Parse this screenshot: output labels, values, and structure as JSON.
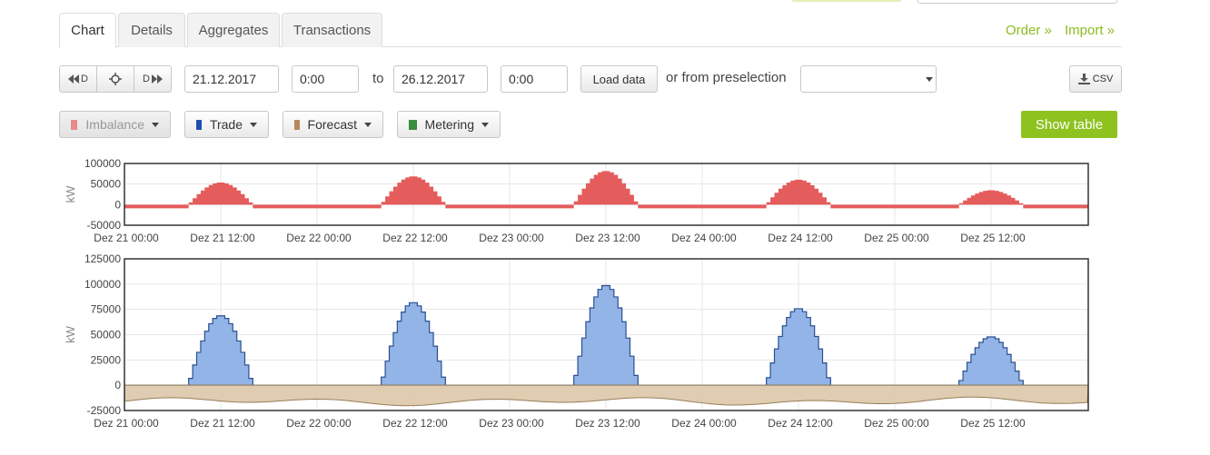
{
  "tabs": [
    {
      "label": "Chart",
      "active": true
    },
    {
      "label": "Details",
      "active": false
    },
    {
      "label": "Aggregates",
      "active": false
    },
    {
      "label": "Transactions",
      "active": false
    }
  ],
  "links": {
    "order": "Order »",
    "import": "Import »"
  },
  "toolbar": {
    "nav_back": "D",
    "nav_fwd": "D",
    "from_date": "21.12.2017",
    "from_time": "0:00",
    "to_label": "to",
    "to_date": "26.12.2017",
    "to_time": "0:00",
    "load_label": "Load data",
    "preselection_label": "or from preselection",
    "preselection_value": "",
    "csv_label": "CSV"
  },
  "series_buttons": [
    {
      "label": "Imbalance",
      "color": "#e8898a",
      "disabled": true
    },
    {
      "label": "Trade",
      "color": "#1f4fb4",
      "disabled": false
    },
    {
      "label": "Forecast",
      "color": "#b8875a",
      "disabled": false
    },
    {
      "label": "Metering",
      "color": "#3b8e3b",
      "disabled": false
    }
  ],
  "show_table_label": "Show table",
  "chart_data": [
    {
      "type": "area",
      "ylabel": "kW",
      "ylim": [
        -50000,
        100000
      ],
      "yticks": [
        "100000",
        "50000",
        "0",
        "-50000"
      ],
      "xticks": [
        "Dez 21 00:00",
        "Dez 21 12:00",
        "Dez 22 00:00",
        "Dez 22 12:00",
        "Dez 23 00:00",
        "Dez 23 12:00",
        "Dez 24 00:00",
        "Dez 24 12:00",
        "Dez 25 00:00",
        "Dez 25 12:00"
      ],
      "grid": true,
      "series": [
        {
          "color": "#e55c5c",
          "night": -9000,
          "peaks": [
            54000,
            69000,
            82000,
            61000,
            35000
          ]
        }
      ]
    },
    {
      "type": "area",
      "ylabel": "kW",
      "ylim": [
        -25000,
        125000
      ],
      "yticks": [
        "125000",
        "100000",
        "75000",
        "50000",
        "25000",
        "0",
        "-25000"
      ],
      "xticks": [
        "Dez 21 00:00",
        "Dez 21 12:00",
        "Dez 22 00:00",
        "Dez 22 12:00",
        "Dez 23 00:00",
        "Dez 23 12:00",
        "Dez 24 00:00",
        "Dez 24 12:00",
        "Dez 25 00:00",
        "Dez 25 12:00"
      ],
      "grid": true,
      "series": [
        {
          "color": "#93b4e6",
          "line": "#2a4f93",
          "peaks": [
            69000,
            82000,
            99000,
            76000,
            48000
          ]
        },
        {
          "color": "#dcc7a8",
          "line": "#9a7d5a",
          "level": -16000
        }
      ]
    }
  ]
}
